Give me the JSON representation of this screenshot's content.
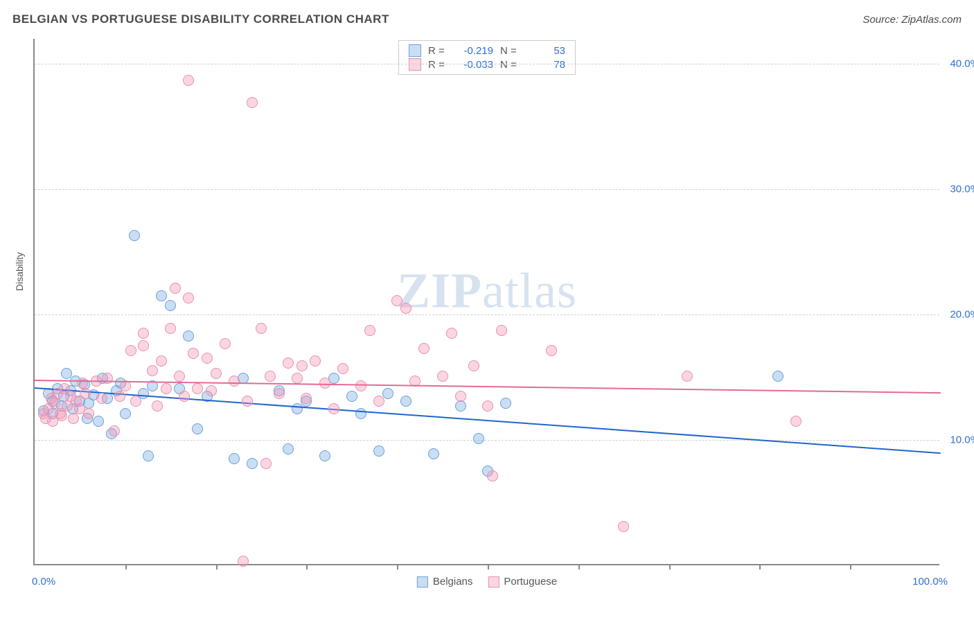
{
  "header": {
    "title": "BELGIAN VS PORTUGUESE DISABILITY CORRELATION CHART",
    "source_prefix": "Source: ",
    "source": "ZipAtlas.com"
  },
  "watermark": {
    "bold": "ZIP",
    "rest": "atlas"
  },
  "chart": {
    "type": "scatter",
    "background_color": "#ffffff",
    "gridline_color": "#d0d0d0",
    "axis_color": "#888888",
    "text_color": "#555555",
    "tick_label_color": "#2e6fd6",
    "xlim": [
      0,
      100
    ],
    "ylim": [
      0,
      42
    ],
    "ylabel": "Disability",
    "ytick_labels": [
      {
        "value": 10,
        "label": "10.0%"
      },
      {
        "value": 20,
        "label": "20.0%"
      },
      {
        "value": 30,
        "label": "30.0%"
      },
      {
        "value": 40,
        "label": "40.0%"
      }
    ],
    "xtick_positions": [
      10,
      20,
      30,
      40,
      50,
      60,
      70,
      80,
      90
    ],
    "xaxis_labels": {
      "left": "0.0%",
      "right": "100.0%"
    },
    "marker_radius": 8,
    "series": [
      {
        "id": "belgians",
        "label": "Belgians",
        "fill_color": "rgba(115,168,224,0.38)",
        "stroke_color": "#6aa0db",
        "trend_color": "#1e66c9",
        "trend": {
          "y_at_x0": 14.2,
          "y_at_x100": 9.0,
          "width": 2
        },
        "r_value": "-0.219",
        "n_value": "53",
        "points": [
          [
            1,
            12.2
          ],
          [
            1.5,
            13.6
          ],
          [
            2,
            13.0
          ],
          [
            2,
            12.0
          ],
          [
            2.5,
            14.0
          ],
          [
            3,
            12.6
          ],
          [
            3.2,
            13.4
          ],
          [
            3.5,
            15.2
          ],
          [
            4,
            13.8
          ],
          [
            4.2,
            12.4
          ],
          [
            4.5,
            14.6
          ],
          [
            5,
            13.0
          ],
          [
            5.5,
            14.3
          ],
          [
            5.8,
            11.6
          ],
          [
            6,
            12.8
          ],
          [
            6.5,
            13.5
          ],
          [
            7,
            11.4
          ],
          [
            7.5,
            14.8
          ],
          [
            8,
            13.2
          ],
          [
            8.5,
            10.4
          ],
          [
            9,
            13.8
          ],
          [
            9.5,
            14.4
          ],
          [
            10,
            12.0
          ],
          [
            11,
            26.2
          ],
          [
            12,
            13.6
          ],
          [
            12.5,
            8.6
          ],
          [
            13,
            14.2
          ],
          [
            14,
            21.4
          ],
          [
            15,
            20.6
          ],
          [
            16,
            14.0
          ],
          [
            17,
            18.2
          ],
          [
            18,
            10.8
          ],
          [
            19,
            13.4
          ],
          [
            22,
            8.4
          ],
          [
            23,
            14.8
          ],
          [
            24,
            8.0
          ],
          [
            27,
            13.8
          ],
          [
            28,
            9.2
          ],
          [
            29,
            12.4
          ],
          [
            30,
            13.0
          ],
          [
            32,
            8.6
          ],
          [
            33,
            14.8
          ],
          [
            35,
            13.4
          ],
          [
            36,
            12.0
          ],
          [
            38,
            9.0
          ],
          [
            39,
            13.6
          ],
          [
            41,
            13.0
          ],
          [
            44,
            8.8
          ],
          [
            47,
            12.6
          ],
          [
            49,
            10.0
          ],
          [
            50,
            7.4
          ],
          [
            52,
            12.8
          ],
          [
            82,
            15.0
          ]
        ]
      },
      {
        "id": "portuguese",
        "label": "Portuguese",
        "fill_color": "rgba(244,148,176,0.38)",
        "stroke_color": "#e78fb0",
        "trend_color": "#e36a94",
        "trend": {
          "y_at_x0": 14.8,
          "y_at_x100": 13.8,
          "width": 2
        },
        "r_value": "-0.033",
        "n_value": "78",
        "points": [
          [
            1,
            12.0
          ],
          [
            1.2,
            11.6
          ],
          [
            1.5,
            12.4
          ],
          [
            1.8,
            13.2
          ],
          [
            2,
            11.4
          ],
          [
            2.2,
            12.8
          ],
          [
            2.5,
            13.6
          ],
          [
            2.8,
            12.0
          ],
          [
            3,
            11.8
          ],
          [
            3.3,
            14.0
          ],
          [
            3.6,
            12.6
          ],
          [
            4,
            13.4
          ],
          [
            4.3,
            11.6
          ],
          [
            4.6,
            13.0
          ],
          [
            5,
            12.4
          ],
          [
            5.3,
            14.4
          ],
          [
            5.6,
            13.6
          ],
          [
            6,
            12.0
          ],
          [
            6.8,
            14.6
          ],
          [
            7.4,
            13.2
          ],
          [
            8,
            14.8
          ],
          [
            8.8,
            10.6
          ],
          [
            9.4,
            13.4
          ],
          [
            10,
            14.2
          ],
          [
            10.6,
            17.0
          ],
          [
            11.2,
            13.0
          ],
          [
            12,
            18.4
          ],
          [
            12,
            17.4
          ],
          [
            13,
            15.4
          ],
          [
            13.5,
            12.6
          ],
          [
            14,
            16.2
          ],
          [
            14.5,
            14.0
          ],
          [
            15,
            18.8
          ],
          [
            15.5,
            22.0
          ],
          [
            16,
            15.0
          ],
          [
            16.5,
            13.4
          ],
          [
            17,
            21.2
          ],
          [
            17,
            38.6
          ],
          [
            17.5,
            16.8
          ],
          [
            18,
            14.0
          ],
          [
            19,
            16.4
          ],
          [
            19.5,
            13.8
          ],
          [
            20,
            15.2
          ],
          [
            21,
            17.6
          ],
          [
            22,
            14.6
          ],
          [
            23,
            0.2
          ],
          [
            23.5,
            13.0
          ],
          [
            24,
            36.8
          ],
          [
            25,
            18.8
          ],
          [
            25.5,
            8.0
          ],
          [
            26,
            15.0
          ],
          [
            27,
            13.6
          ],
          [
            28,
            16.0
          ],
          [
            29,
            14.8
          ],
          [
            29.5,
            15.8
          ],
          [
            30,
            13.2
          ],
          [
            31,
            16.2
          ],
          [
            32,
            14.4
          ],
          [
            33,
            12.4
          ],
          [
            34,
            15.6
          ],
          [
            36,
            14.2
          ],
          [
            37,
            18.6
          ],
          [
            38,
            13.0
          ],
          [
            40,
            21.0
          ],
          [
            41,
            20.4
          ],
          [
            42,
            14.6
          ],
          [
            43,
            17.2
          ],
          [
            45,
            15.0
          ],
          [
            46,
            18.4
          ],
          [
            47,
            13.4
          ],
          [
            48.5,
            15.8
          ],
          [
            50,
            12.6
          ],
          [
            50.5,
            7.0
          ],
          [
            51.5,
            18.6
          ],
          [
            57,
            17.0
          ],
          [
            65,
            3.0
          ],
          [
            72,
            15.0
          ],
          [
            84,
            11.4
          ]
        ]
      }
    ],
    "legend_top": {
      "r_label": "R =",
      "n_label": "N ="
    }
  }
}
